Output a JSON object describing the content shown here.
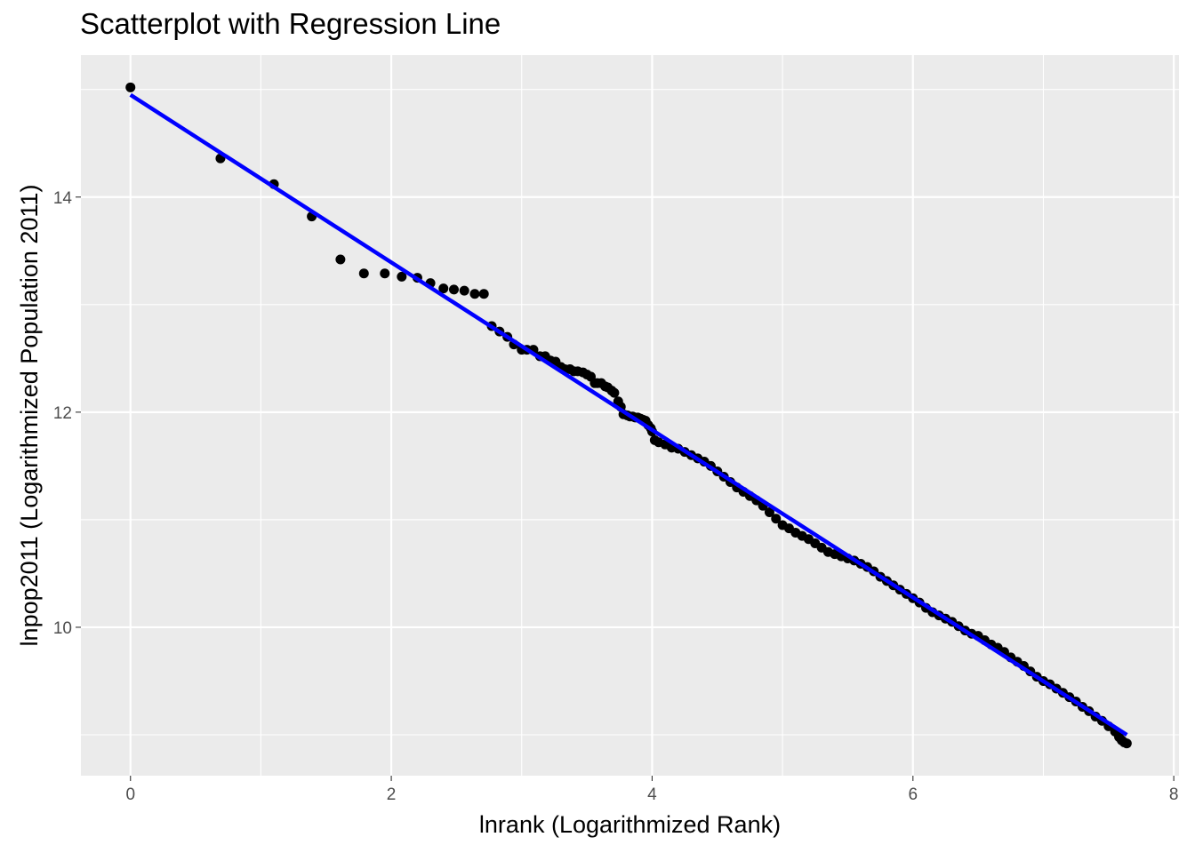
{
  "chart_data": {
    "type": "scatter",
    "title": "Scatterplot with Regression Line",
    "xlabel": "lnrank (Logarithmized Rank)",
    "ylabel": "lnpop2011 (Logarithmized Population 2011)",
    "xlim": [
      -0.38,
      8.04
    ],
    "ylim": [
      8.62,
      15.32
    ],
    "x_ticks": [
      0,
      2,
      4,
      6,
      8
    ],
    "x_minor": [
      1,
      3,
      5,
      7
    ],
    "y_ticks": [
      10,
      12,
      14
    ],
    "y_minor": [
      9,
      11,
      13,
      15
    ],
    "grid": true,
    "legend": "none",
    "colors": {
      "panel": "#ebebeb",
      "grid": "#ffffff",
      "points": "#000000",
      "line": "#0000ff",
      "tick_text": "#4d4d4d"
    },
    "points_sampled": [
      [
        0.0,
        15.02
      ],
      [
        0.69,
        14.36
      ],
      [
        1.1,
        14.12
      ],
      [
        1.39,
        13.82
      ],
      [
        1.61,
        13.42
      ],
      [
        1.79,
        13.29
      ],
      [
        1.95,
        13.29
      ],
      [
        2.08,
        13.26
      ],
      [
        2.2,
        13.25
      ],
      [
        2.3,
        13.2
      ],
      [
        2.4,
        13.15
      ],
      [
        2.48,
        13.14
      ],
      [
        2.56,
        13.13
      ],
      [
        2.64,
        13.1
      ],
      [
        2.71,
        13.1
      ],
      [
        2.77,
        12.8
      ],
      [
        2.83,
        12.75
      ],
      [
        2.89,
        12.7
      ],
      [
        2.94,
        12.63
      ],
      [
        3.0,
        12.58
      ],
      [
        3.04,
        12.58
      ],
      [
        3.09,
        12.58
      ],
      [
        3.14,
        12.52
      ],
      [
        3.18,
        12.52
      ],
      [
        3.22,
        12.48
      ],
      [
        3.26,
        12.47
      ],
      [
        3.3,
        12.42
      ],
      [
        3.33,
        12.4
      ],
      [
        3.37,
        12.4
      ],
      [
        3.4,
        12.38
      ],
      [
        3.43,
        12.38
      ],
      [
        3.47,
        12.37
      ],
      [
        3.5,
        12.35
      ],
      [
        3.53,
        12.33
      ],
      [
        3.56,
        12.27
      ],
      [
        3.58,
        12.27
      ],
      [
        3.61,
        12.27
      ],
      [
        3.64,
        12.24
      ],
      [
        3.66,
        12.23
      ],
      [
        3.69,
        12.2
      ],
      [
        3.71,
        12.18
      ],
      [
        3.74,
        12.1
      ],
      [
        3.76,
        12.05
      ],
      [
        3.78,
        11.98
      ],
      [
        3.81,
        11.97
      ],
      [
        3.83,
        11.96
      ],
      [
        3.85,
        11.96
      ],
      [
        3.87,
        11.95
      ],
      [
        3.89,
        11.95
      ],
      [
        3.91,
        11.94
      ],
      [
        3.93,
        11.93
      ],
      [
        3.95,
        11.92
      ],
      [
        3.97,
        11.88
      ],
      [
        3.99,
        11.85
      ],
      [
        4.0,
        11.82
      ],
      [
        4.02,
        11.74
      ],
      [
        4.05,
        11.72
      ],
      [
        4.1,
        11.7
      ],
      [
        4.15,
        11.67
      ],
      [
        4.2,
        11.66
      ],
      [
        4.25,
        11.63
      ],
      [
        4.3,
        11.6
      ],
      [
        4.35,
        11.57
      ],
      [
        4.4,
        11.54
      ],
      [
        4.45,
        11.5
      ],
      [
        4.5,
        11.45
      ],
      [
        4.55,
        11.4
      ],
      [
        4.6,
        11.35
      ],
      [
        4.65,
        11.3
      ],
      [
        4.7,
        11.26
      ],
      [
        4.75,
        11.22
      ],
      [
        4.8,
        11.18
      ],
      [
        4.85,
        11.13
      ],
      [
        4.9,
        11.07
      ],
      [
        4.95,
        11.01
      ],
      [
        5.0,
        10.95
      ],
      [
        5.05,
        10.92
      ],
      [
        5.1,
        10.88
      ],
      [
        5.15,
        10.85
      ],
      [
        5.2,
        10.82
      ],
      [
        5.25,
        10.78
      ],
      [
        5.3,
        10.74
      ],
      [
        5.35,
        10.7
      ],
      [
        5.4,
        10.68
      ],
      [
        5.45,
        10.66
      ],
      [
        5.5,
        10.64
      ],
      [
        5.55,
        10.62
      ],
      [
        5.6,
        10.59
      ],
      [
        5.65,
        10.56
      ],
      [
        5.7,
        10.52
      ],
      [
        5.75,
        10.47
      ],
      [
        5.8,
        10.43
      ],
      [
        5.85,
        10.39
      ],
      [
        5.9,
        10.35
      ],
      [
        5.95,
        10.31
      ],
      [
        6.0,
        10.27
      ],
      [
        6.05,
        10.23
      ],
      [
        6.1,
        10.18
      ],
      [
        6.15,
        10.14
      ],
      [
        6.2,
        10.11
      ],
      [
        6.25,
        10.08
      ],
      [
        6.3,
        10.05
      ],
      [
        6.35,
        10.01
      ],
      [
        6.4,
        9.97
      ],
      [
        6.45,
        9.94
      ],
      [
        6.5,
        9.92
      ],
      [
        6.55,
        9.88
      ],
      [
        6.6,
        9.84
      ],
      [
        6.65,
        9.81
      ],
      [
        6.7,
        9.77
      ],
      [
        6.75,
        9.72
      ],
      [
        6.8,
        9.68
      ],
      [
        6.85,
        9.64
      ],
      [
        6.9,
        9.59
      ],
      [
        6.95,
        9.54
      ],
      [
        7.0,
        9.5
      ],
      [
        7.05,
        9.47
      ],
      [
        7.1,
        9.43
      ],
      [
        7.15,
        9.39
      ],
      [
        7.2,
        9.35
      ],
      [
        7.25,
        9.31
      ],
      [
        7.3,
        9.26
      ],
      [
        7.35,
        9.22
      ],
      [
        7.4,
        9.17
      ],
      [
        7.45,
        9.13
      ],
      [
        7.5,
        9.08
      ],
      [
        7.55,
        9.03
      ],
      [
        7.58,
        8.98
      ],
      [
        7.6,
        8.95
      ],
      [
        7.62,
        8.93
      ],
      [
        7.64,
        8.92
      ]
    ],
    "regression_line": {
      "x": [
        0.0,
        7.64
      ],
      "y": [
        14.95,
        9.0
      ]
    }
  }
}
